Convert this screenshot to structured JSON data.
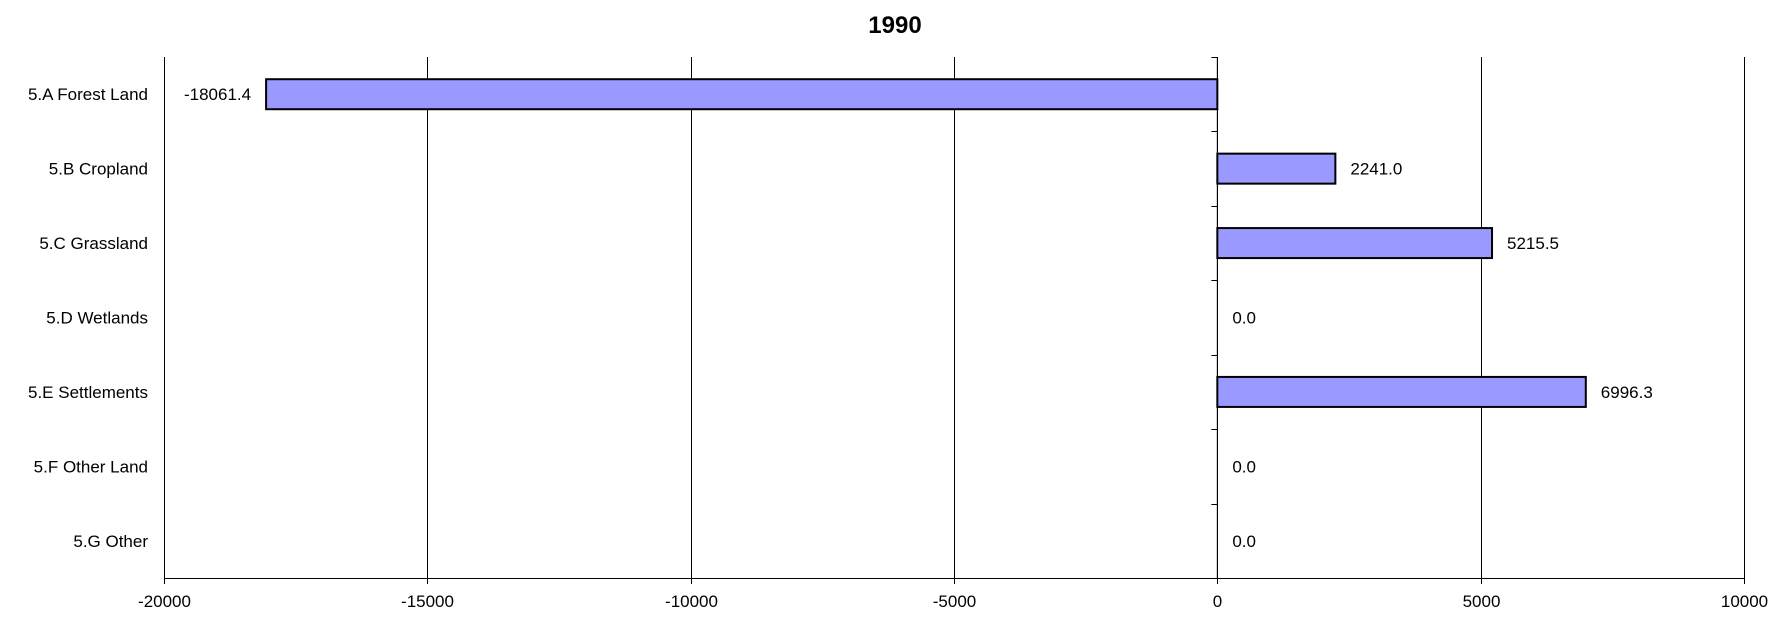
{
  "chart_data": {
    "type": "bar",
    "orientation": "horizontal",
    "title": "1990",
    "xlabel": "",
    "ylabel": "",
    "categories": [
      "5.A Forest Land",
      "5.B Cropland",
      "5.C Grassland",
      "5.D Wetlands",
      "5.E Settlements",
      "5.F Other Land",
      "5.G Other"
    ],
    "values": [
      -18061.4,
      2241.0,
      5215.5,
      0.0,
      6996.3,
      0.0,
      0.0
    ],
    "value_labels": [
      "-18061.4",
      "2241.0",
      "5215.5",
      "0.0",
      "6996.3",
      "0.0",
      "0.0"
    ],
    "xlim": [
      -20000,
      10000
    ],
    "xticks": [
      -20000,
      -15000,
      -10000,
      -5000,
      0,
      5000,
      10000
    ],
    "xtick_labels": [
      "-20000",
      "-15000",
      "-10000",
      "-5000",
      "0",
      "5000",
      "10000"
    ],
    "grid": "vertical major gridlines",
    "legend": "none",
    "bar_color": "#9999ff",
    "bar_edge_color": "#000000"
  }
}
